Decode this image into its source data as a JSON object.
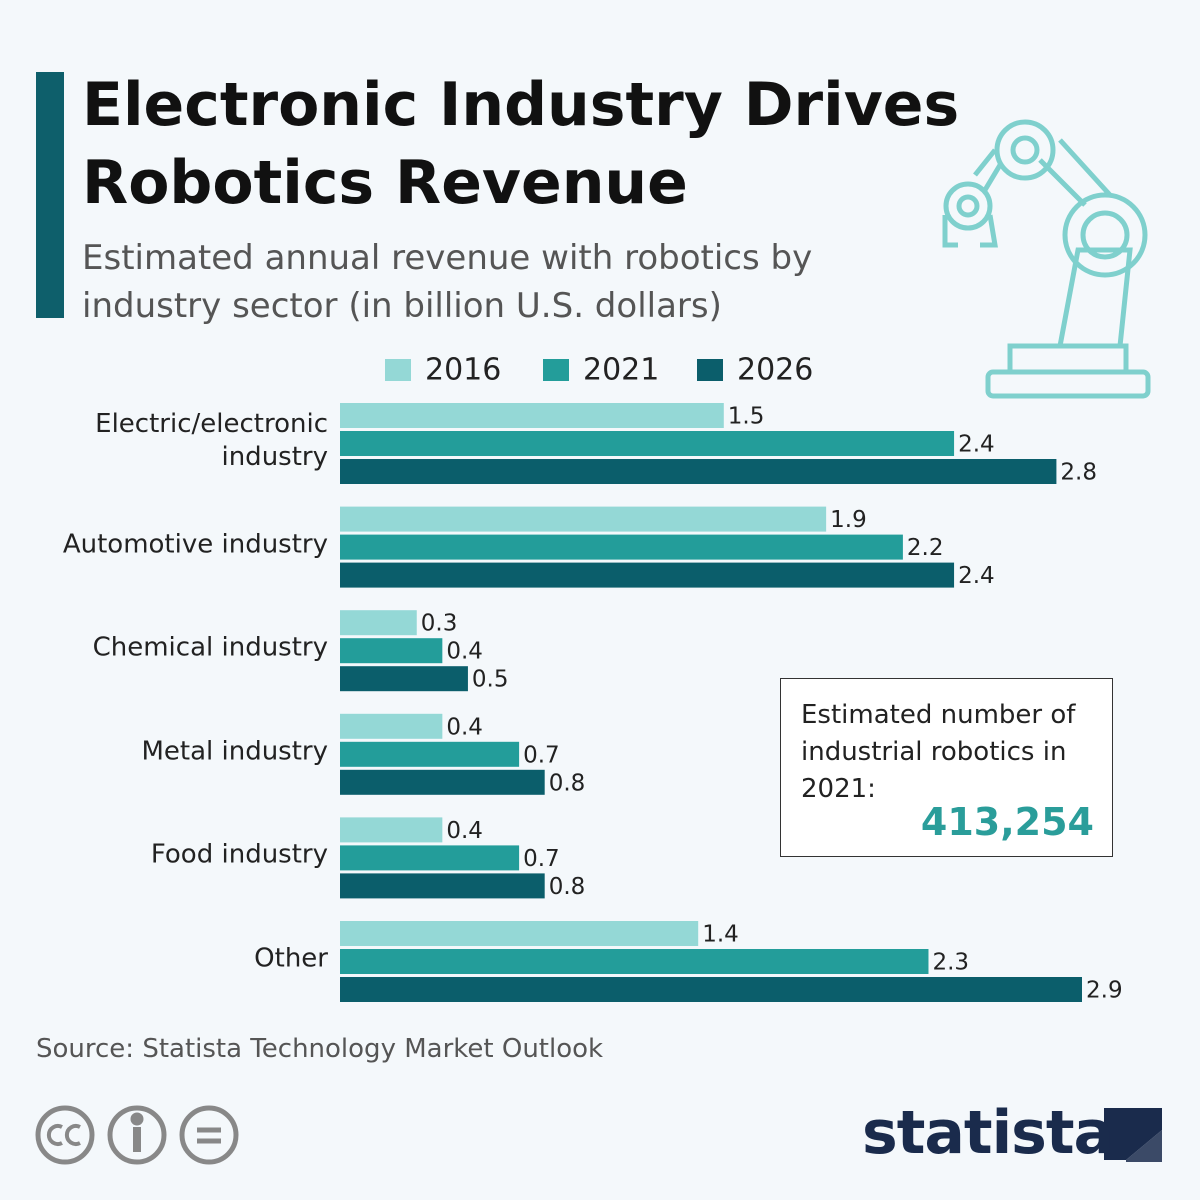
{
  "header": {
    "title": "Electronic Industry Drives Robotics Revenue",
    "subtitle": "Estimated annual revenue with robotics by industry sector (in billion U.S. dollars)"
  },
  "chart_data": {
    "type": "bar",
    "orientation": "horizontal",
    "categories": [
      "Electric/electronic industry",
      "Automotive industry",
      "Chemical industry",
      "Metal industry",
      "Food industry",
      "Other"
    ],
    "series": [
      {
        "name": "2016",
        "color": "#94d8d6",
        "values": [
          1.5,
          1.9,
          0.3,
          0.4,
          0.4,
          1.4
        ]
      },
      {
        "name": "2021",
        "color": "#239d9a",
        "values": [
          2.4,
          2.2,
          0.4,
          0.7,
          0.7,
          2.3
        ]
      },
      {
        "name": "2026",
        "color": "#0b5e6b",
        "values": [
          2.8,
          2.4,
          0.5,
          0.8,
          0.8,
          2.9
        ]
      }
    ]
  },
  "note": {
    "text": "Estimated number of industrial robotics in 2021:",
    "value": "413,254"
  },
  "source": "Source: Statista Technology Market Outlook",
  "logo": "statista"
}
